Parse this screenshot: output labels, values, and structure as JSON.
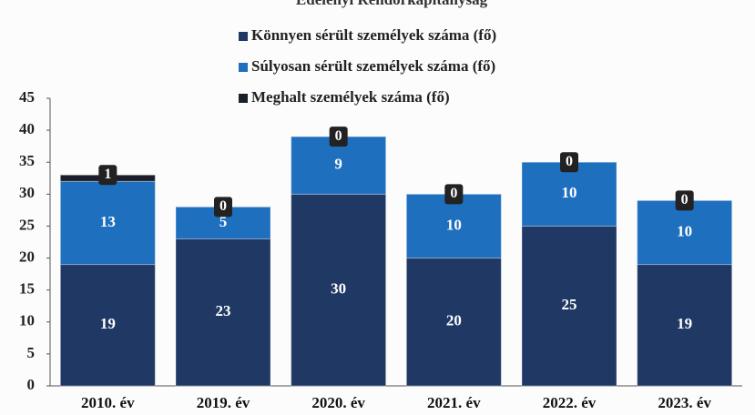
{
  "chart_data": {
    "type": "stacked_bar",
    "title": "Edelényi Rendőrkapitányság",
    "categories": [
      "2010. év",
      "2019. év",
      "2020. év",
      "2021. év",
      "2022. év",
      "2023. év"
    ],
    "series": [
      {
        "name": "Könnyen sérült személyek száma (fő)",
        "color": "#1f3864",
        "values": [
          19,
          23,
          30,
          20,
          25,
          19
        ]
      },
      {
        "name": "Súlyosan sérült személyek száma (fő)",
        "color": "#1f6fbf",
        "values": [
          13,
          5,
          9,
          10,
          10,
          10
        ]
      },
      {
        "name": "Meghalt személyek száma (fő)",
        "color": "#1a1f2b",
        "values": [
          1,
          0,
          0,
          0,
          0,
          0
        ]
      }
    ],
    "ylim": [
      0,
      45
    ],
    "yticks": [
      0,
      5,
      10,
      15,
      20,
      25,
      30,
      35,
      40,
      45
    ],
    "grid": false
  }
}
